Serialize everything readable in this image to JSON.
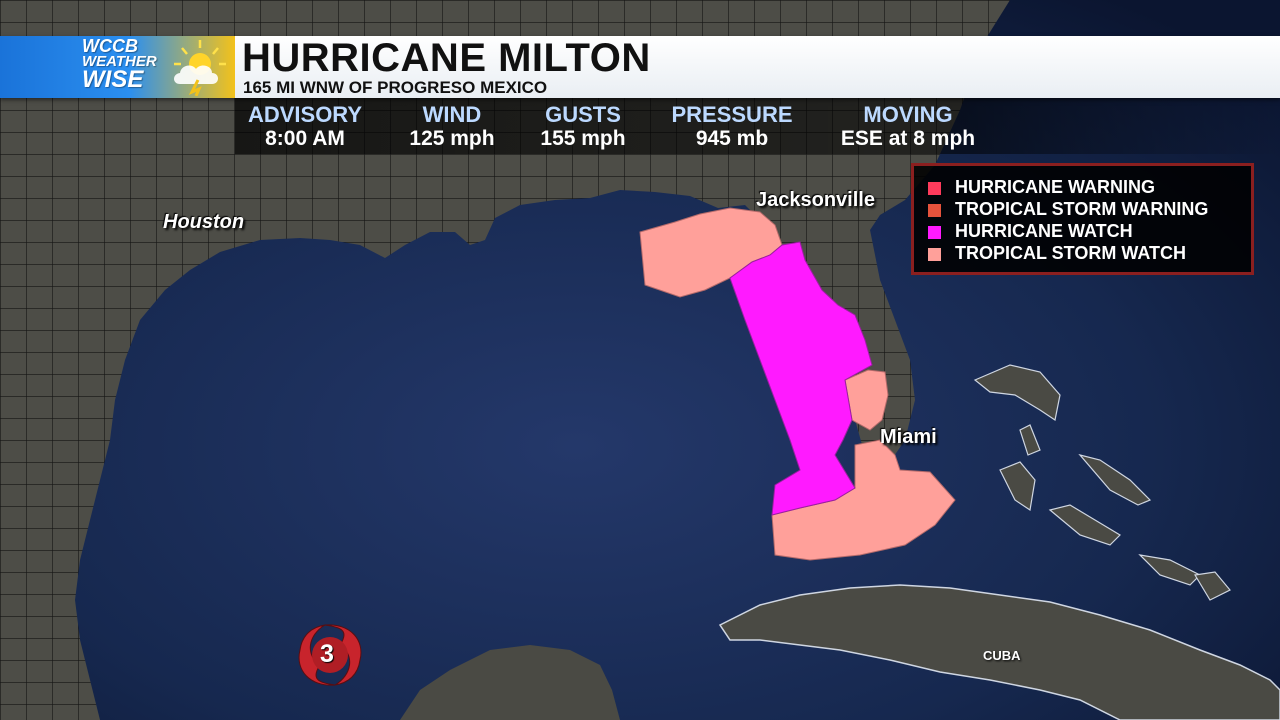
{
  "brand": {
    "line1": "WCCB",
    "line2": "WEATHER",
    "line3": "WISE",
    "accent": "#1a73d9"
  },
  "storm": {
    "name": "HURRICANE MILTON",
    "location": "165 MI WNW OF PROGRESO MEXICO",
    "category": "3"
  },
  "stats": [
    {
      "label": "ADVISORY",
      "value": "8:00 AM"
    },
    {
      "label": "WIND",
      "value": "125 mph"
    },
    {
      "label": "GUSTS",
      "value": "155 mph"
    },
    {
      "label": "PRESSURE",
      "value": "945 mb"
    },
    {
      "label": "MOVING",
      "value": "ESE at 8 mph"
    }
  ],
  "legend": [
    {
      "label": "HURRICANE WARNING",
      "color": "#ff3b5c"
    },
    {
      "label": "TROPICAL STORM WARNING",
      "color": "#e6533c"
    },
    {
      "label": "HURRICANE WATCH",
      "color": "#ff1aff"
    },
    {
      "label": "TROPICAL STORM WATCH",
      "color": "#ffa09a"
    }
  ],
  "cities": [
    "Houston",
    "Jacksonville",
    "Miami"
  ],
  "countries": [
    "CUBA"
  ],
  "colors": {
    "ocean": "#172a55",
    "land": "#4a4a44",
    "hurricane_watch": "#ff1aff",
    "tropical_storm_watch": "#ffa09a",
    "legend_border": "#8b1f1f"
  }
}
